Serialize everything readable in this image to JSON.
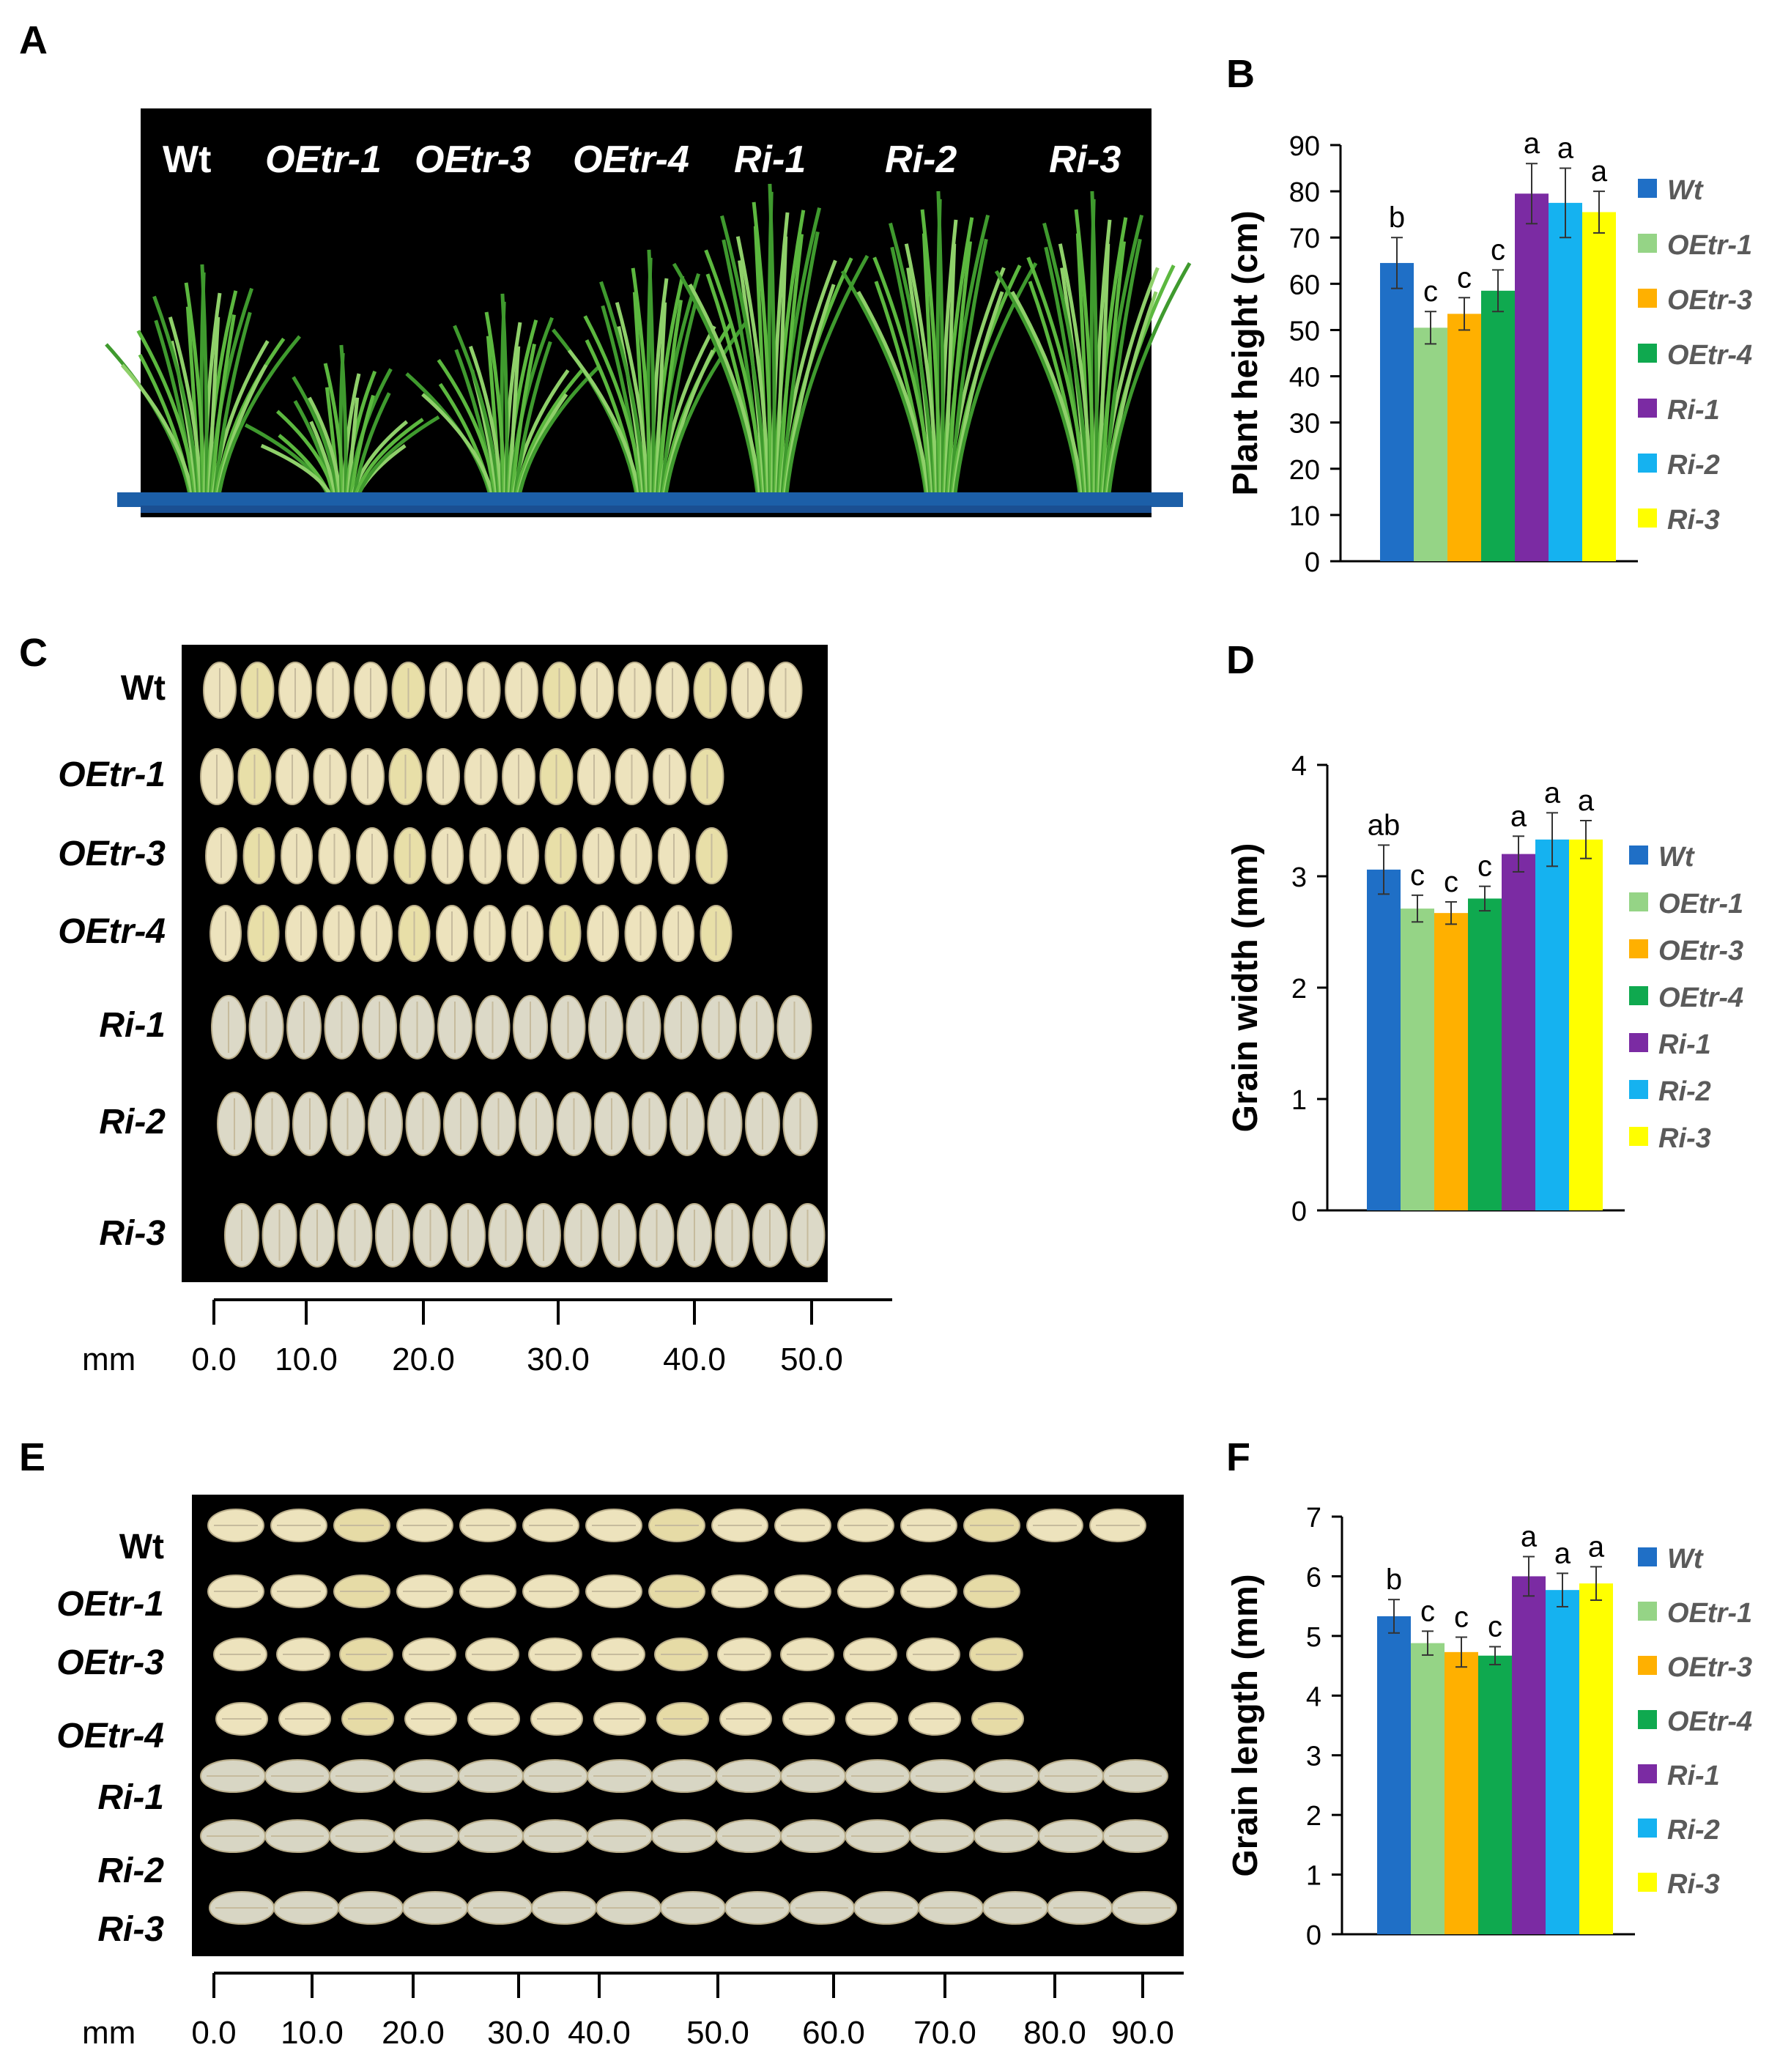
{
  "panels": {
    "A": "A",
    "B": "B",
    "C": "C",
    "D": "D",
    "E": "E",
    "F": "F"
  },
  "genotype_colors": [
    "#1f6fc6",
    "#95d486",
    "#ffb000",
    "#0fa94f",
    "#7b2ba3",
    "#15b2f0",
    "#ffff00"
  ],
  "photo_A": {
    "labels": [
      "Wt",
      "OEtr-1",
      "OEtr-3",
      "OEtr-4",
      "Ri-1",
      "Ri-2",
      "Ri-3"
    ]
  },
  "photo_C": {
    "row_labels": [
      "Wt",
      "OEtr-1",
      "OEtr-3",
      "OEtr-4",
      "Ri-1",
      "Ri-2",
      "Ri-3"
    ],
    "grain_counts": [
      16,
      14,
      14,
      14,
      16,
      16,
      16
    ]
  },
  "photo_E": {
    "row_labels": [
      "Wt",
      "OEtr-1",
      "OEtr-3",
      "OEtr-4",
      "Ri-1",
      "Ri-2",
      "Ri-3"
    ],
    "grain_counts": [
      15,
      13,
      13,
      13,
      15,
      15,
      15
    ]
  },
  "scale_C": {
    "unit": "mm",
    "ticks": [
      "0.0",
      "10.0",
      "20.0",
      "30.0",
      "40.0",
      "50.0"
    ]
  },
  "scale_E": {
    "unit": "mm",
    "ticks": [
      "0.0",
      "10.0",
      "20.0",
      "30.0",
      "40.0",
      "50.0",
      "60.0",
      "70.0",
      "80.0",
      "90.0"
    ]
  },
  "chart_data": [
    {
      "panel": "B",
      "type": "bar",
      "title": "",
      "xlabel": "",
      "ylabel": "Plant height (cm)",
      "ylim": [
        0,
        90
      ],
      "yticks": [
        "0",
        "10",
        "20",
        "30",
        "40",
        "50",
        "60",
        "70",
        "80",
        "90"
      ],
      "categories": [
        "Wt",
        "OEtr-1",
        "OEtr-3",
        "OEtr-4",
        "Ri-1",
        "Ri-2",
        "Ri-3"
      ],
      "values": [
        64.5,
        50.5,
        53.5,
        58.5,
        79.5,
        77.5,
        75.5
      ],
      "errors": [
        5.5,
        3.5,
        3.5,
        4.5,
        6.5,
        7.5,
        4.5
      ],
      "significance": [
        "b",
        "c",
        "c",
        "c",
        "a",
        "a",
        "a"
      ],
      "legend": [
        "Wt",
        "OEtr-1",
        "OEtr-3",
        "OEtr-4",
        "Ri-1",
        "Ri-2",
        "Ri-3"
      ],
      "legend_position": "right"
    },
    {
      "panel": "D",
      "type": "bar",
      "title": "",
      "xlabel": "",
      "ylabel": "Grain width (mm)",
      "ylim": [
        0,
        4
      ],
      "yticks": [
        "0",
        "1",
        "2",
        "3",
        "4"
      ],
      "categories": [
        "Wt",
        "OEtr-1",
        "OEtr-3",
        "OEtr-4",
        "Ri-1",
        "Ri-2",
        "Ri-3"
      ],
      "values": [
        3.06,
        2.71,
        2.67,
        2.8,
        3.2,
        3.33,
        3.33
      ],
      "errors": [
        0.22,
        0.12,
        0.1,
        0.11,
        0.16,
        0.24,
        0.17
      ],
      "significance": [
        "ab",
        "c",
        "c",
        "c",
        "a",
        "a",
        "a"
      ],
      "legend": [
        "Wt",
        "OEtr-1",
        "OEtr-3",
        "OEtr-4",
        "Ri-1",
        "Ri-2",
        "Ri-3"
      ],
      "legend_position": "right"
    },
    {
      "panel": "F",
      "type": "bar",
      "title": "",
      "xlabel": "",
      "ylabel": "Grain length (mm)",
      "ylim": [
        0,
        7
      ],
      "yticks": [
        "0",
        "1",
        "2",
        "3",
        "4",
        "5",
        "6",
        "7"
      ],
      "categories": [
        "Wt",
        "OEtr-1",
        "OEtr-3",
        "OEtr-4",
        "Ri-1",
        "Ri-2",
        "Ri-3"
      ],
      "values": [
        5.33,
        4.88,
        4.73,
        4.67,
        6.0,
        5.77,
        5.88
      ],
      "errors": [
        0.28,
        0.2,
        0.25,
        0.15,
        0.33,
        0.28,
        0.28
      ],
      "significance": [
        "b",
        "c",
        "c",
        "c",
        "a",
        "a",
        "a"
      ],
      "legend": [
        "Wt",
        "OEtr-1",
        "OEtr-3",
        "OEtr-4",
        "Ri-1",
        "Ri-2",
        "Ri-3"
      ],
      "legend_position": "right"
    }
  ]
}
